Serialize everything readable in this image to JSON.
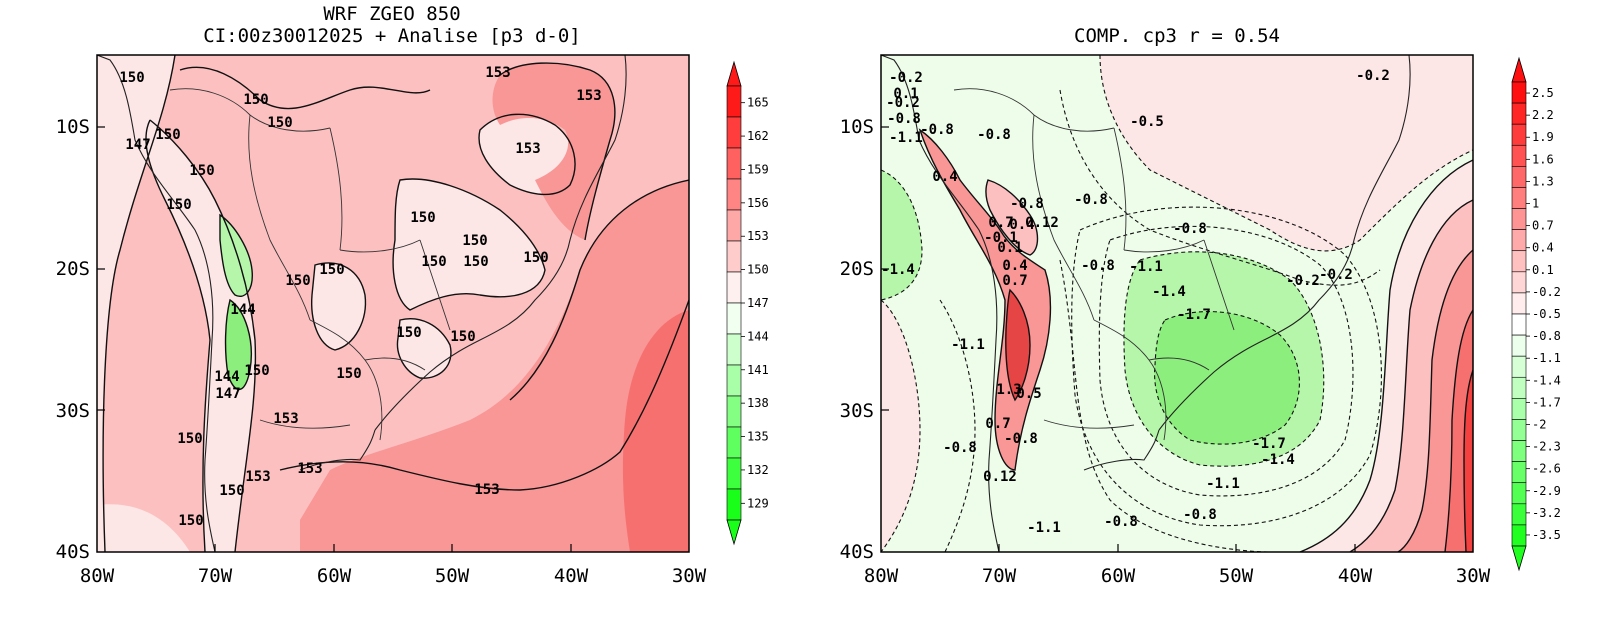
{
  "left_panel": {
    "title_line1": "WRF ZGEO 850",
    "title_line2": "CI:00z30012025 + Analise  [p3 d-0]",
    "contour_labels": [
      "150",
      "150",
      "150",
      "147",
      "150",
      "150",
      "150",
      "144",
      "150",
      "150",
      "144",
      "147",
      "150",
      "153",
      "150",
      "153",
      "150",
      "150",
      "153",
      "153",
      "153",
      "150",
      "150",
      "150",
      "150",
      "150",
      "150",
      "150",
      "153",
      "153",
      "150"
    ],
    "colorbar": {
      "labels": [
        "165",
        "162",
        "159",
        "156",
        "153",
        "150",
        "147",
        "144",
        "141",
        "138",
        "135",
        "132",
        "129"
      ]
    }
  },
  "right_panel": {
    "title": "COMP. cp3  r =  0.54",
    "contour_labels": [
      "-0.2",
      "0.1",
      "-0.8",
      "-1.1",
      "-0.8",
      "-0.8",
      "-0.5",
      "-0.2",
      "0.4",
      "-0.8",
      "-0.8",
      "0.7",
      "0.4",
      "0.12",
      "-0.8",
      "-0.1",
      "0.1",
      "-1.4",
      "0.4",
      "0.7",
      "-0.8",
      "-1.1",
      "-1.4",
      "-1.7",
      "-0.2",
      "-0.2",
      "-1.1",
      "1.3",
      "0.5",
      "0.7",
      "-0.8",
      "-0.8",
      "0.12",
      "-1.7",
      "-1.4",
      "-1.1",
      "-0.8",
      "-1.1",
      "-0.8",
      "-0.2"
    ],
    "colorbar": {
      "labels": [
        "2.5",
        "2.2",
        "1.9",
        "1.6",
        "1.3",
        "1",
        "0.7",
        "0.4",
        "0.1",
        "-0.2",
        "-0.5",
        "-0.8",
        "-1.1",
        "-1.4",
        "-1.7",
        "-2",
        "-2.3",
        "-2.6",
        "-2.9",
        "-3.2",
        "-3.5"
      ]
    }
  },
  "axes": {
    "y_labels": [
      "10S",
      "20S",
      "30S",
      "40S"
    ],
    "x_labels": [
      "80W",
      "70W",
      "60W",
      "50W",
      "40W",
      "30W"
    ]
  },
  "colors": {
    "base_pink": "#fcc0c0",
    "light_pink": "#fde6e6",
    "mid_red": "#f99696",
    "strong_red": "#f77070",
    "green_light": "#eefcea",
    "green_mid": "#b6f6aa",
    "green_strong": "#8cee7c"
  }
}
